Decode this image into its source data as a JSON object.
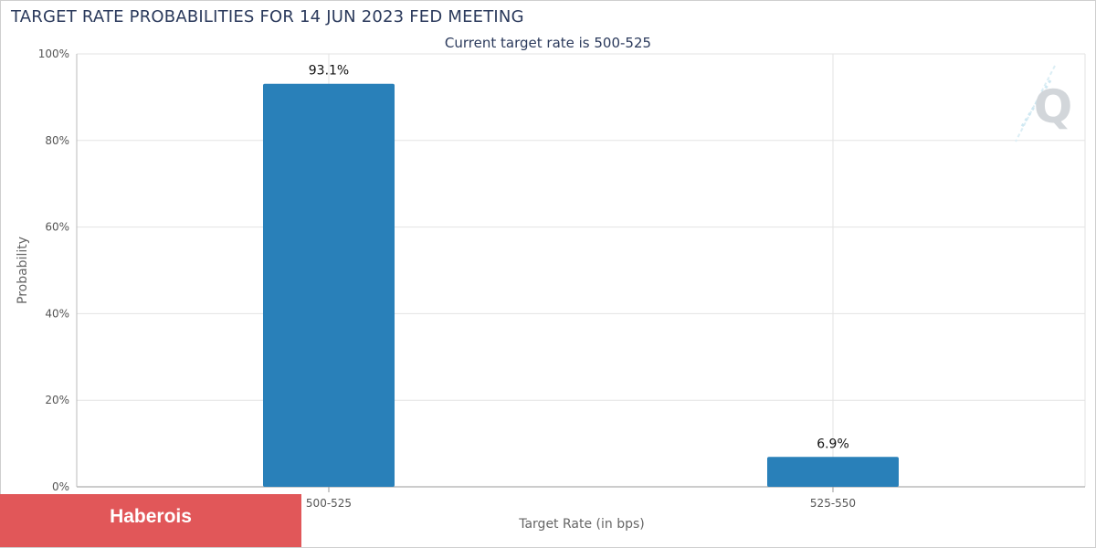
{
  "chart_data": {
    "type": "bar",
    "title": "TARGET RATE PROBABILITIES FOR 14 JUN 2023 FED MEETING",
    "subtitle": "Current target rate is 500-525",
    "xlabel": "Target Rate (in bps)",
    "ylabel": "Probability",
    "categories": [
      "500-525",
      "525-550"
    ],
    "values": [
      93.1,
      6.9
    ],
    "data_labels": [
      "93.1%",
      "6.9%"
    ],
    "ylim": [
      0,
      100
    ],
    "yticks": [
      0,
      20,
      40,
      60,
      80,
      100
    ],
    "ytick_labels": [
      "0%",
      "20%",
      "40%",
      "60%",
      "80%",
      "100%"
    ],
    "grid": true,
    "bar_color": "#2980b9"
  },
  "watermark": {
    "text": "Haberois",
    "color": "#e15759"
  },
  "logo": {
    "icon": "q-logo-icon",
    "letter": "Q"
  }
}
